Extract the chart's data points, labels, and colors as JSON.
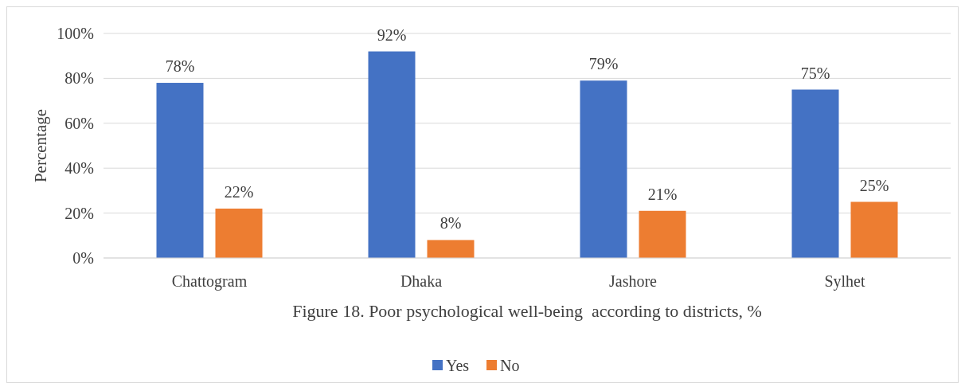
{
  "chart_data": {
    "type": "bar",
    "title": "Figure 18. Poor psychological well-being  according to districts, %",
    "ylabel": "Percentage",
    "categories": [
      "Chattogram",
      "Dhaka",
      "Jashore",
      "Sylhet"
    ],
    "series": [
      {
        "name": "Yes",
        "color": "#4472c4",
        "values": [
          78,
          92,
          79,
          75
        ],
        "value_labels": [
          "78%",
          "92%",
          "79%",
          "75%"
        ]
      },
      {
        "name": "No",
        "color": "#ed7d31",
        "values": [
          22,
          8,
          21,
          25
        ],
        "value_labels": [
          "22%",
          "8%",
          "21%",
          "25%"
        ]
      }
    ],
    "ylim": [
      0,
      100
    ],
    "yticks": [
      {
        "value": 0,
        "label": "0%"
      },
      {
        "value": 20,
        "label": "20%"
      },
      {
        "value": 40,
        "label": "40%"
      },
      {
        "value": 60,
        "label": "60%"
      },
      {
        "value": 80,
        "label": "80%"
      },
      {
        "value": 100,
        "label": "100%"
      }
    ],
    "grid": "y",
    "legend": "bottom"
  }
}
